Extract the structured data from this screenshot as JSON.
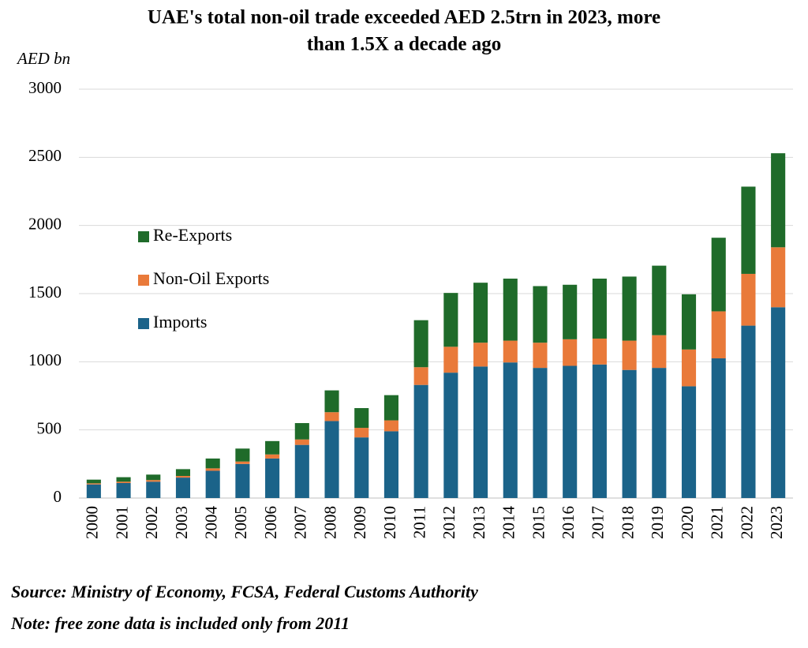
{
  "chart_data": {
    "type": "stacked_bar",
    "title": [
      "UAE's total non-oil trade exceeded AED 2.5trn in 2023, more",
      "than 1.5X a decade ago"
    ],
    "y_label": "AED bn",
    "categories": [
      "2000",
      "2001",
      "2002",
      "2003",
      "2004",
      "2005",
      "2006",
      "2007",
      "2008",
      "2009",
      "2010",
      "2011",
      "2012",
      "2013",
      "2014",
      "2015",
      "2016",
      "2017",
      "2018",
      "2019",
      "2020",
      "2021",
      "2022",
      "2023"
    ],
    "series": [
      {
        "name": "Imports",
        "color": "#1b6389",
        "values": [
          100,
          110,
          120,
          150,
          200,
          250,
          290,
          390,
          565,
          445,
          490,
          830,
          920,
          965,
          995,
          955,
          970,
          980,
          940,
          955,
          820,
          1025,
          1265,
          1400
        ]
      },
      {
        "name": "Non-Oil Exports",
        "color": "#e97a3a",
        "values": [
          8,
          10,
          12,
          12,
          18,
          18,
          30,
          40,
          65,
          70,
          80,
          130,
          190,
          175,
          160,
          185,
          195,
          190,
          215,
          240,
          270,
          345,
          380,
          440
        ]
      },
      {
        "name": "Re-Exports",
        "color": "#1f6b2a",
        "values": [
          27,
          33,
          40,
          50,
          72,
          95,
          98,
          120,
          160,
          145,
          185,
          345,
          395,
          440,
          455,
          415,
          400,
          440,
          470,
          510,
          405,
          540,
          640,
          690
        ]
      }
    ],
    "ylim": [
      0,
      3000
    ],
    "yticks": [
      0,
      500,
      1000,
      1500,
      2000,
      2500,
      3000
    ],
    "grid": true,
    "legend": "left",
    "source": "Source: Ministry of Economy, FCSA, Federal Customs Authority",
    "note": "Note: free zone data is included only from 2011"
  }
}
